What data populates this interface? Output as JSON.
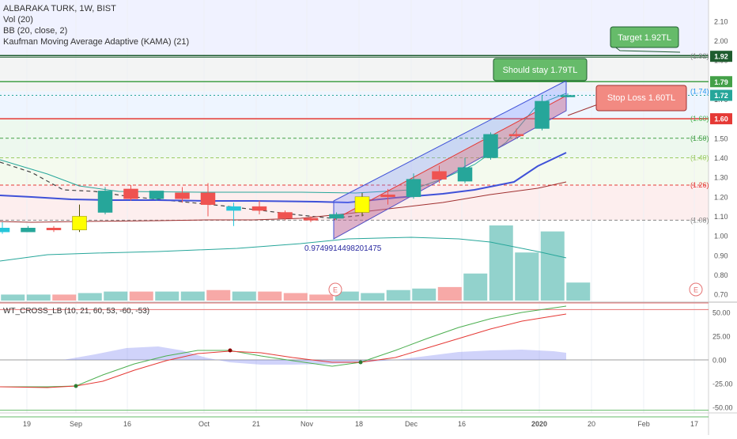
{
  "legend": {
    "symbol": "ALBARAKA TURK, 1W, BIST",
    "vol": "Vol (20)",
    "bb": "BB (20, close, 2)",
    "kama": "Kaufman Moving Average Adaptive (KAMA) (21)",
    "wt": "WT_CROSS_LB (10, 21, 60, 53, -60, -53)"
  },
  "annotations": {
    "target": "Target 1.92TL",
    "stay": "Should stay 1.79TL",
    "stop": "Stop Loss 1.60TL",
    "low_value": "0.9749914498201475",
    "earnings": "E"
  },
  "price_axis": {
    "ticks": [
      "2.10",
      "2.00",
      "1.90",
      "1.80",
      "1.70",
      "1.60",
      "1.50",
      "1.40",
      "1.30",
      "1.20",
      "1.10",
      "1.00",
      "0.90",
      "0.80",
      "0.70"
    ],
    "badges": [
      {
        "label": "1.92",
        "value": 1.92,
        "color": "#1e5c2e"
      },
      {
        "label": "1.79",
        "value": 1.79,
        "color": "#43a047"
      },
      {
        "label": "1.72",
        "value": 1.72,
        "color": "#26a69a"
      },
      {
        "label": "1.60",
        "value": 1.6,
        "color": "#e53935"
      }
    ]
  },
  "fib_levels": [
    {
      "label": "(1.92)",
      "value": 1.92,
      "color": "#888888"
    },
    {
      "label": "(1.74)",
      "value": 1.74,
      "color": "#2196f3"
    },
    {
      "label": "(1.60)",
      "value": 1.6,
      "color": "#4caf50"
    },
    {
      "label": "(1.50)",
      "value": 1.5,
      "color": "#43a047"
    },
    {
      "label": "(1.40)",
      "value": 1.4,
      "color": "#9ccc65"
    },
    {
      "label": "(1.26)",
      "value": 1.26,
      "color": "#e53935"
    },
    {
      "label": "(1.08)",
      "value": 1.08,
      "color": "#888888"
    }
  ],
  "osc_axis": {
    "ticks": [
      "50.00",
      "25.00",
      "0.00",
      "-25.00",
      "-50.00"
    ]
  },
  "time_axis": {
    "ticks": [
      "19",
      "Sep",
      "16",
      "Oct",
      "21",
      "Nov",
      "18",
      "Dec",
      "16",
      "2020",
      "20",
      "Feb",
      "17"
    ]
  },
  "chart_data": {
    "type": "candlestick",
    "title": "ALBARAKA TURK, 1W, BIST",
    "ylim": [
      0.66,
      2.16
    ],
    "candles": [
      {
        "o": 1.04,
        "h": 1.07,
        "l": 1.01,
        "c": 1.02,
        "color": "cyan"
      },
      {
        "o": 1.04,
        "h": 1.05,
        "l": 1.02,
        "c": 1.02,
        "color": "teal"
      },
      {
        "o": 1.03,
        "h": 1.05,
        "l": 1.02,
        "c": 1.04,
        "color": "red"
      },
      {
        "o": 1.03,
        "h": 1.16,
        "l": 1.02,
        "c": 1.1,
        "color": "yellow"
      },
      {
        "o": 1.12,
        "h": 1.25,
        "l": 1.11,
        "c": 1.23,
        "color": "teal"
      },
      {
        "o": 1.24,
        "h": 1.26,
        "l": 1.18,
        "c": 1.19,
        "color": "red"
      },
      {
        "o": 1.19,
        "h": 1.23,
        "l": 1.18,
        "c": 1.23,
        "color": "teal"
      },
      {
        "o": 1.22,
        "h": 1.25,
        "l": 1.17,
        "c": 1.19,
        "color": "red"
      },
      {
        "o": 1.22,
        "h": 1.27,
        "l": 1.1,
        "c": 1.16,
        "color": "red"
      },
      {
        "o": 1.13,
        "h": 1.17,
        "l": 1.05,
        "c": 1.15,
        "color": "cyan"
      },
      {
        "o": 1.15,
        "h": 1.18,
        "l": 1.11,
        "c": 1.13,
        "color": "red"
      },
      {
        "o": 1.12,
        "h": 1.13,
        "l": 1.08,
        "c": 1.09,
        "color": "red"
      },
      {
        "o": 1.09,
        "h": 1.1,
        "l": 1.07,
        "c": 1.08,
        "color": "red"
      },
      {
        "o": 1.09,
        "h": 1.12,
        "l": 1.08,
        "c": 1.11,
        "color": "teal"
      },
      {
        "o": 1.12,
        "h": 1.22,
        "l": 1.1,
        "c": 1.2,
        "color": "yellow"
      },
      {
        "o": 1.21,
        "h": 1.24,
        "l": 1.16,
        "c": 1.2,
        "color": "red"
      },
      {
        "o": 1.2,
        "h": 1.32,
        "l": 1.19,
        "c": 1.29,
        "color": "teal"
      },
      {
        "o": 1.33,
        "h": 1.36,
        "l": 1.27,
        "c": 1.29,
        "color": "red"
      },
      {
        "o": 1.28,
        "h": 1.4,
        "l": 1.27,
        "c": 1.35,
        "color": "teal"
      },
      {
        "o": 1.4,
        "h": 1.53,
        "l": 1.39,
        "c": 1.52,
        "color": "teal"
      },
      {
        "o": 1.52,
        "h": 1.55,
        "l": 1.5,
        "c": 1.52,
        "color": "red"
      },
      {
        "o": 1.55,
        "h": 1.72,
        "l": 1.54,
        "c": 1.69,
        "color": "teal"
      },
      {
        "o": 1.72,
        "h": 1.73,
        "l": 1.71,
        "c": 1.72,
        "color": "teal"
      }
    ],
    "volume": [
      0.04,
      0.04,
      0.04,
      0.05,
      0.06,
      0.06,
      0.06,
      0.06,
      0.07,
      0.06,
      0.06,
      0.05,
      0.04,
      0.06,
      0.05,
      0.07,
      0.08,
      0.09,
      0.18,
      0.5,
      0.32,
      0.46,
      0.12
    ],
    "volume_colors": [
      "teal",
      "teal",
      "red",
      "teal",
      "teal",
      "red",
      "teal",
      "teal",
      "red",
      "teal",
      "red",
      "red",
      "red",
      "teal",
      "teal",
      "teal",
      "teal",
      "red",
      "teal",
      "teal",
      "teal",
      "teal",
      "teal"
    ]
  }
}
